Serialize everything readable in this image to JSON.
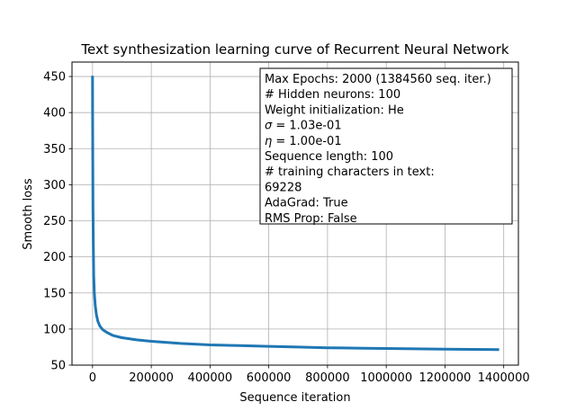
{
  "chart_data": {
    "type": "line",
    "title": "Text synthesization learning curve of Recurrent Neural Network",
    "xlabel": "Sequence iteration",
    "ylabel": "Smooth loss",
    "xlim": [
      -70000,
      1450000
    ],
    "ylim": [
      50,
      470
    ],
    "x_ticks": [
      0,
      200000,
      400000,
      600000,
      800000,
      1000000,
      1200000,
      1400000
    ],
    "y_ticks": [
      50,
      100,
      150,
      200,
      250,
      300,
      350,
      400,
      450
    ],
    "grid": true,
    "line_color": "#1f77b4",
    "series": [
      {
        "x": [
          0,
          300,
          800,
          1500,
          2500,
          4000,
          6000,
          9000,
          13000,
          18000,
          25000,
          35000,
          50000,
          70000,
          100000,
          150000,
          200000,
          300000,
          400000,
          500000,
          600000,
          700000,
          800000,
          900000,
          1000000,
          1100000,
          1200000,
          1300000,
          1384560
        ],
        "y": [
          451,
          400,
          330,
          270,
          215,
          175,
          150,
          133,
          120,
          111,
          104,
          99,
          95,
          91,
          88,
          85,
          83,
          80,
          78,
          77,
          76,
          75,
          74,
          73.5,
          73,
          72.5,
          72,
          71.8,
          71.5
        ]
      }
    ],
    "info_box": {
      "lines": [
        {
          "text": "Max Epochs: 2000 (1384560 seq. iter.)"
        },
        {
          "text": "# Hidden neurons: 100"
        },
        {
          "text": "Weight initialization: He"
        },
        {
          "symbol": "σ",
          "text": " = 1.03e-01"
        },
        {
          "symbol": "η",
          "text": " = 1.00e-01"
        },
        {
          "text": "Sequence length: 100"
        },
        {
          "text": "# training characters in text:"
        },
        {
          "text": "69228"
        },
        {
          "text": "AdaGrad: True"
        },
        {
          "text": "RMS Prop: False"
        }
      ],
      "placement": "top-right"
    }
  }
}
